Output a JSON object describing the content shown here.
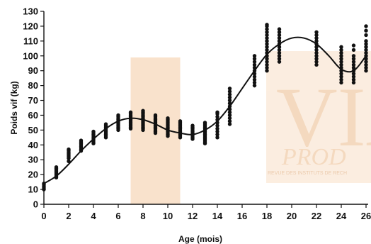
{
  "chart_data": {
    "type": "scatter",
    "title": "",
    "xlabel": "Age (mois)",
    "ylabel": "Poids vif (kg)",
    "xlim": [
      0,
      26
    ],
    "ylim": [
      0,
      130
    ],
    "x_ticks": [
      0,
      2,
      4,
      6,
      8,
      10,
      12,
      14,
      16,
      18,
      20,
      22,
      24,
      26
    ],
    "y_ticks": [
      0,
      10,
      20,
      30,
      40,
      50,
      60,
      70,
      80,
      90,
      100,
      110,
      120,
      130
    ],
    "grid": false,
    "marker_color": "#111111",
    "curve_color": "#111111",
    "shaded_band": {
      "x": [
        7,
        11
      ],
      "color": "#f9e2cc"
    },
    "observations": [
      {
        "x": 0,
        "y": [
          10,
          11,
          12,
          13,
          14
        ]
      },
      {
        "x": 1,
        "y": [
          18,
          19,
          20,
          21,
          22,
          23,
          24,
          25
        ]
      },
      {
        "x": 2,
        "y": [
          29,
          31,
          32,
          33,
          34,
          35,
          36,
          37
        ]
      },
      {
        "x": 3,
        "y": [
          36,
          37,
          38,
          39,
          40,
          41,
          42,
          43
        ]
      },
      {
        "x": 4,
        "y": [
          41,
          42,
          43,
          44,
          45,
          46,
          47,
          48,
          49
        ]
      },
      {
        "x": 5,
        "y": [
          45,
          46,
          47,
          48,
          49,
          50,
          51,
          52,
          53,
          54
        ]
      },
      {
        "x": 6,
        "y": [
          50,
          51,
          52,
          53,
          54,
          55,
          56,
          57,
          58,
          59,
          60
        ]
      },
      {
        "x": 7,
        "y": [
          51,
          52,
          53,
          54,
          55,
          56,
          57,
          58,
          59,
          60,
          61,
          62
        ]
      },
      {
        "x": 8,
        "y": [
          50,
          51,
          52,
          53,
          54,
          55,
          56,
          57,
          58,
          59,
          60,
          61,
          62,
          63
        ]
      },
      {
        "x": 9,
        "y": [
          48,
          49,
          50,
          51,
          52,
          53,
          54,
          55,
          56,
          57,
          58,
          59,
          60
        ]
      },
      {
        "x": 10,
        "y": [
          46,
          47,
          48,
          49,
          50,
          51,
          52,
          53,
          54,
          55,
          56,
          57,
          58
        ]
      },
      {
        "x": 11,
        "y": [
          45,
          46,
          47,
          48,
          49,
          50,
          51,
          52,
          53,
          54,
          55,
          56
        ]
      },
      {
        "x": 12,
        "y": [
          44,
          45,
          46,
          47,
          48,
          49,
          50,
          51,
          52,
          53
        ]
      },
      {
        "x": 13,
        "y": [
          41,
          42,
          43,
          44,
          45,
          46,
          47,
          48,
          49,
          50,
          51,
          52,
          53,
          54,
          55
        ]
      },
      {
        "x": 14,
        "y": [
          45,
          47,
          49,
          51,
          53,
          55,
          57,
          59,
          61,
          62
        ]
      },
      {
        "x": 15,
        "y": [
          54,
          56,
          58,
          60,
          62,
          64,
          66,
          68,
          70,
          72,
          74,
          76,
          78
        ]
      },
      {
        "x": 17,
        "y": [
          80,
          82,
          84,
          86,
          88,
          90,
          92,
          94,
          96,
          98,
          100
        ]
      },
      {
        "x": 18,
        "y": [
          90,
          92,
          94,
          96,
          98,
          100,
          102,
          104,
          106,
          108,
          110,
          112,
          114,
          116,
          118,
          120,
          121
        ]
      },
      {
        "x": 19,
        "y": [
          96,
          98,
          100,
          102,
          104,
          106,
          108,
          110,
          112,
          114,
          116,
          118
        ]
      },
      {
        "x": 22,
        "y": [
          94,
          96,
          98,
          100,
          102,
          104,
          106,
          108,
          110,
          112,
          114,
          116
        ]
      },
      {
        "x": 24,
        "y": [
          82,
          84,
          86,
          88,
          90,
          92,
          94,
          96,
          98,
          100,
          102,
          104,
          106
        ]
      },
      {
        "x": 25,
        "y": [
          82,
          84,
          86,
          88,
          90,
          92,
          94,
          96,
          98,
          100,
          104,
          107
        ]
      },
      {
        "x": 26,
        "y": [
          90,
          92,
          94,
          96,
          98,
          100,
          102,
          104,
          106,
          108,
          110,
          114,
          117,
          120
        ]
      }
    ],
    "fitted_curve": {
      "x": [
        0,
        1,
        2,
        3,
        4,
        5,
        6,
        7,
        8,
        9,
        10,
        11,
        12,
        13,
        14,
        15,
        16,
        17,
        18,
        19,
        20,
        21,
        22,
        23,
        24,
        25,
        26
      ],
      "y": [
        14,
        19,
        27,
        36,
        44,
        51,
        56,
        58,
        57,
        54,
        50,
        48,
        47,
        50,
        56,
        66,
        78,
        90,
        101,
        108,
        112,
        112,
        108,
        100,
        91,
        90,
        100
      ]
    }
  },
  "watermark": {
    "big": "VIA",
    "script": "PROD",
    "caption": "REVUE DES INSTITUTS DE RECH"
  }
}
